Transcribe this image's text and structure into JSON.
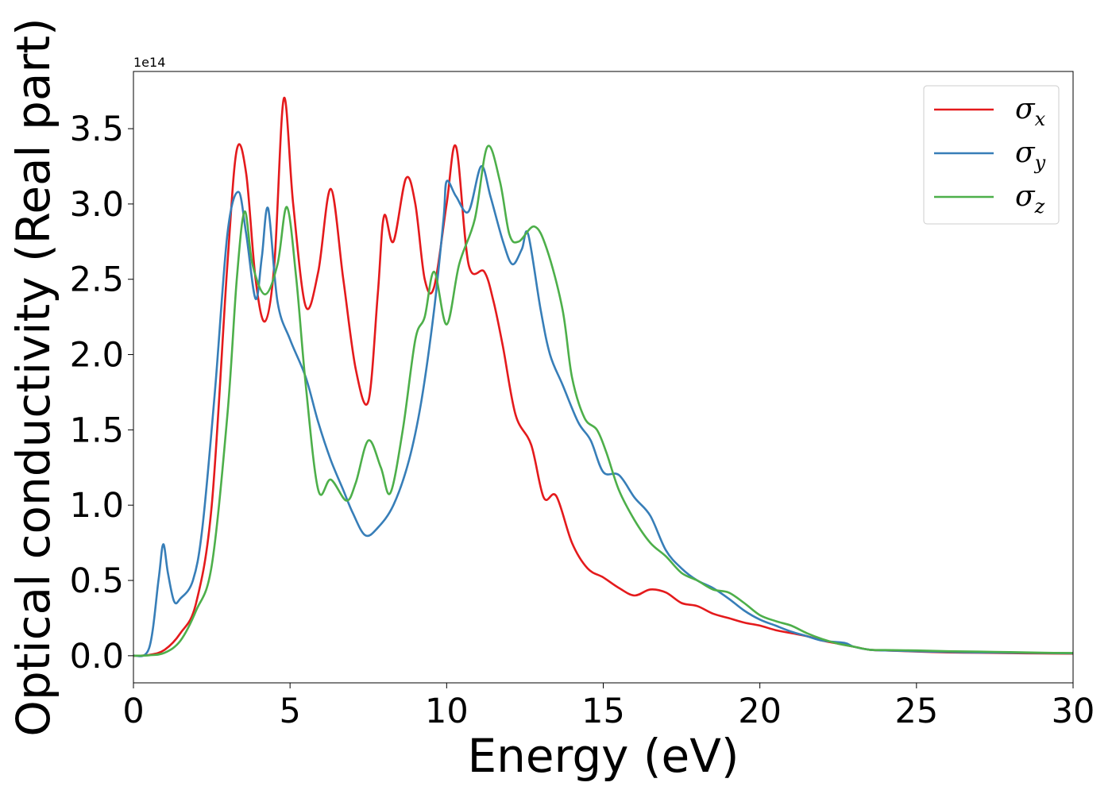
{
  "chart_data": {
    "type": "line",
    "xlabel": "Energy (eV)",
    "ylabel": "Optical conductivity (Real part)",
    "y_offset_text": "1e14",
    "xlim": [
      0,
      30
    ],
    "ylim": [
      -0.18,
      3.88
    ],
    "x_ticks": [
      0,
      5,
      10,
      15,
      20,
      25,
      30
    ],
    "x_tick_labels": [
      "0",
      "5",
      "10",
      "15",
      "20",
      "25",
      "30"
    ],
    "y_ticks": [
      0.0,
      0.5,
      1.0,
      1.5,
      2.0,
      2.5,
      3.0,
      3.5
    ],
    "y_tick_labels": [
      "0.0",
      "0.5",
      "1.0",
      "1.5",
      "2.0",
      "2.5",
      "3.0",
      "3.5"
    ],
    "grid": false,
    "legend_position": "top-right",
    "series": [
      {
        "name": "σx",
        "symbol": "σ",
        "subscript": "x",
        "color": "#e41a1c",
        "points": [
          [
            0,
            0
          ],
          [
            0.5,
            0.005
          ],
          [
            1.0,
            0.04
          ],
          [
            1.5,
            0.15
          ],
          [
            2.0,
            0.35
          ],
          [
            2.5,
            1.0
          ],
          [
            3.0,
            2.6
          ],
          [
            3.3,
            3.36
          ],
          [
            3.6,
            3.2
          ],
          [
            3.9,
            2.5
          ],
          [
            4.2,
            2.22
          ],
          [
            4.5,
            2.6
          ],
          [
            4.8,
            3.7
          ],
          [
            5.1,
            3.0
          ],
          [
            5.5,
            2.32
          ],
          [
            5.9,
            2.55
          ],
          [
            6.3,
            3.1
          ],
          [
            6.7,
            2.5
          ],
          [
            7.1,
            1.9
          ],
          [
            7.5,
            1.69
          ],
          [
            7.8,
            2.4
          ],
          [
            8.0,
            2.92
          ],
          [
            8.3,
            2.75
          ],
          [
            8.7,
            3.17
          ],
          [
            9.0,
            3.0
          ],
          [
            9.3,
            2.5
          ],
          [
            9.6,
            2.45
          ],
          [
            10.0,
            3.0
          ],
          [
            10.3,
            3.38
          ],
          [
            10.7,
            2.6
          ],
          [
            11.2,
            2.55
          ],
          [
            11.5,
            2.35
          ],
          [
            11.8,
            2.05
          ],
          [
            12.2,
            1.6
          ],
          [
            12.7,
            1.4
          ],
          [
            13.1,
            1.05
          ],
          [
            13.5,
            1.06
          ],
          [
            14.0,
            0.75
          ],
          [
            14.5,
            0.58
          ],
          [
            15.0,
            0.52
          ],
          [
            15.5,
            0.45
          ],
          [
            16.0,
            0.4
          ],
          [
            16.5,
            0.44
          ],
          [
            17.0,
            0.42
          ],
          [
            17.5,
            0.35
          ],
          [
            18.0,
            0.33
          ],
          [
            18.5,
            0.28
          ],
          [
            19.0,
            0.25
          ],
          [
            19.5,
            0.22
          ],
          [
            20.0,
            0.2
          ],
          [
            20.5,
            0.17
          ],
          [
            21.0,
            0.15
          ],
          [
            21.5,
            0.13
          ],
          [
            22.0,
            0.1
          ],
          [
            22.5,
            0.08
          ],
          [
            23.0,
            0.06
          ],
          [
            23.5,
            0.04
          ],
          [
            24.0,
            0.035
          ],
          [
            25.0,
            0.028
          ],
          [
            26.0,
            0.022
          ],
          [
            27.0,
            0.02
          ],
          [
            28.0,
            0.017
          ],
          [
            29.0,
            0.015
          ],
          [
            30.0,
            0.014
          ]
        ]
      },
      {
        "name": "σy",
        "symbol": "σ",
        "subscript": "y",
        "color": "#377eb8",
        "points": [
          [
            0,
            0
          ],
          [
            0.5,
            0.05
          ],
          [
            0.8,
            0.5
          ],
          [
            0.95,
            0.74
          ],
          [
            1.1,
            0.55
          ],
          [
            1.3,
            0.36
          ],
          [
            1.5,
            0.38
          ],
          [
            1.9,
            0.5
          ],
          [
            2.2,
            0.85
          ],
          [
            2.6,
            1.75
          ],
          [
            3.0,
            2.8
          ],
          [
            3.35,
            3.08
          ],
          [
            3.6,
            2.8
          ],
          [
            3.9,
            2.37
          ],
          [
            4.1,
            2.65
          ],
          [
            4.3,
            2.97
          ],
          [
            4.6,
            2.35
          ],
          [
            5.0,
            2.1
          ],
          [
            5.5,
            1.85
          ],
          [
            5.9,
            1.55
          ],
          [
            6.3,
            1.3
          ],
          [
            6.7,
            1.1
          ],
          [
            7.0,
            0.95
          ],
          [
            7.4,
            0.8
          ],
          [
            7.8,
            0.85
          ],
          [
            8.3,
            1.0
          ],
          [
            8.8,
            1.3
          ],
          [
            9.2,
            1.7
          ],
          [
            9.6,
            2.3
          ],
          [
            9.9,
            2.9
          ],
          [
            10.0,
            3.15
          ],
          [
            10.3,
            3.05
          ],
          [
            10.7,
            2.95
          ],
          [
            11.1,
            3.25
          ],
          [
            11.4,
            3.05
          ],
          [
            11.8,
            2.75
          ],
          [
            12.1,
            2.6
          ],
          [
            12.4,
            2.7
          ],
          [
            12.6,
            2.8
          ],
          [
            13.0,
            2.3
          ],
          [
            13.3,
            2.0
          ],
          [
            13.7,
            1.8
          ],
          [
            14.2,
            1.55
          ],
          [
            14.6,
            1.43
          ],
          [
            15.0,
            1.22
          ],
          [
            15.5,
            1.2
          ],
          [
            16.0,
            1.05
          ],
          [
            16.5,
            0.93
          ],
          [
            17.0,
            0.7
          ],
          [
            17.5,
            0.58
          ],
          [
            18.0,
            0.5
          ],
          [
            18.5,
            0.45
          ],
          [
            19.0,
            0.38
          ],
          [
            19.5,
            0.3
          ],
          [
            20.0,
            0.24
          ],
          [
            20.5,
            0.2
          ],
          [
            21.0,
            0.16
          ],
          [
            21.5,
            0.13
          ],
          [
            22.0,
            0.1
          ],
          [
            22.7,
            0.085
          ],
          [
            23.0,
            0.06
          ],
          [
            23.5,
            0.04
          ],
          [
            24.0,
            0.035
          ],
          [
            25.0,
            0.03
          ],
          [
            26.0,
            0.025
          ],
          [
            27.0,
            0.022
          ],
          [
            28.0,
            0.02
          ],
          [
            29.0,
            0.018
          ],
          [
            30.0,
            0.016
          ]
        ]
      },
      {
        "name": "σz",
        "symbol": "σ",
        "subscript": "z",
        "color": "#4daf4a",
        "points": [
          [
            0,
            0
          ],
          [
            0.5,
            0.003
          ],
          [
            1.0,
            0.02
          ],
          [
            1.5,
            0.1
          ],
          [
            2.0,
            0.3
          ],
          [
            2.5,
            0.6
          ],
          [
            3.0,
            1.6
          ],
          [
            3.3,
            2.5
          ],
          [
            3.55,
            2.95
          ],
          [
            3.8,
            2.6
          ],
          [
            4.2,
            2.4
          ],
          [
            4.6,
            2.6
          ],
          [
            4.9,
            2.98
          ],
          [
            5.2,
            2.5
          ],
          [
            5.5,
            1.8
          ],
          [
            5.9,
            1.1
          ],
          [
            6.3,
            1.17
          ],
          [
            6.8,
            1.03
          ],
          [
            7.1,
            1.15
          ],
          [
            7.5,
            1.43
          ],
          [
            7.9,
            1.25
          ],
          [
            8.2,
            1.08
          ],
          [
            8.6,
            1.5
          ],
          [
            9.0,
            2.1
          ],
          [
            9.3,
            2.25
          ],
          [
            9.6,
            2.55
          ],
          [
            10.0,
            2.2
          ],
          [
            10.4,
            2.6
          ],
          [
            10.9,
            2.9
          ],
          [
            11.3,
            3.38
          ],
          [
            11.7,
            3.15
          ],
          [
            12.0,
            2.8
          ],
          [
            12.3,
            2.75
          ],
          [
            12.8,
            2.85
          ],
          [
            13.2,
            2.7
          ],
          [
            13.7,
            2.3
          ],
          [
            14.0,
            1.85
          ],
          [
            14.4,
            1.58
          ],
          [
            14.8,
            1.5
          ],
          [
            15.1,
            1.35
          ],
          [
            15.5,
            1.1
          ],
          [
            16.0,
            0.9
          ],
          [
            16.5,
            0.75
          ],
          [
            17.0,
            0.66
          ],
          [
            17.5,
            0.55
          ],
          [
            18.0,
            0.5
          ],
          [
            18.5,
            0.44
          ],
          [
            19.0,
            0.42
          ],
          [
            19.5,
            0.35
          ],
          [
            20.0,
            0.27
          ],
          [
            20.5,
            0.23
          ],
          [
            21.0,
            0.2
          ],
          [
            21.5,
            0.15
          ],
          [
            22.0,
            0.11
          ],
          [
            22.5,
            0.08
          ],
          [
            23.0,
            0.06
          ],
          [
            23.5,
            0.04
          ],
          [
            24.0,
            0.038
          ],
          [
            25.0,
            0.035
          ],
          [
            26.0,
            0.03
          ],
          [
            27.0,
            0.027
          ],
          [
            28.0,
            0.024
          ],
          [
            29.0,
            0.02
          ],
          [
            30.0,
            0.018
          ]
        ]
      }
    ]
  }
}
